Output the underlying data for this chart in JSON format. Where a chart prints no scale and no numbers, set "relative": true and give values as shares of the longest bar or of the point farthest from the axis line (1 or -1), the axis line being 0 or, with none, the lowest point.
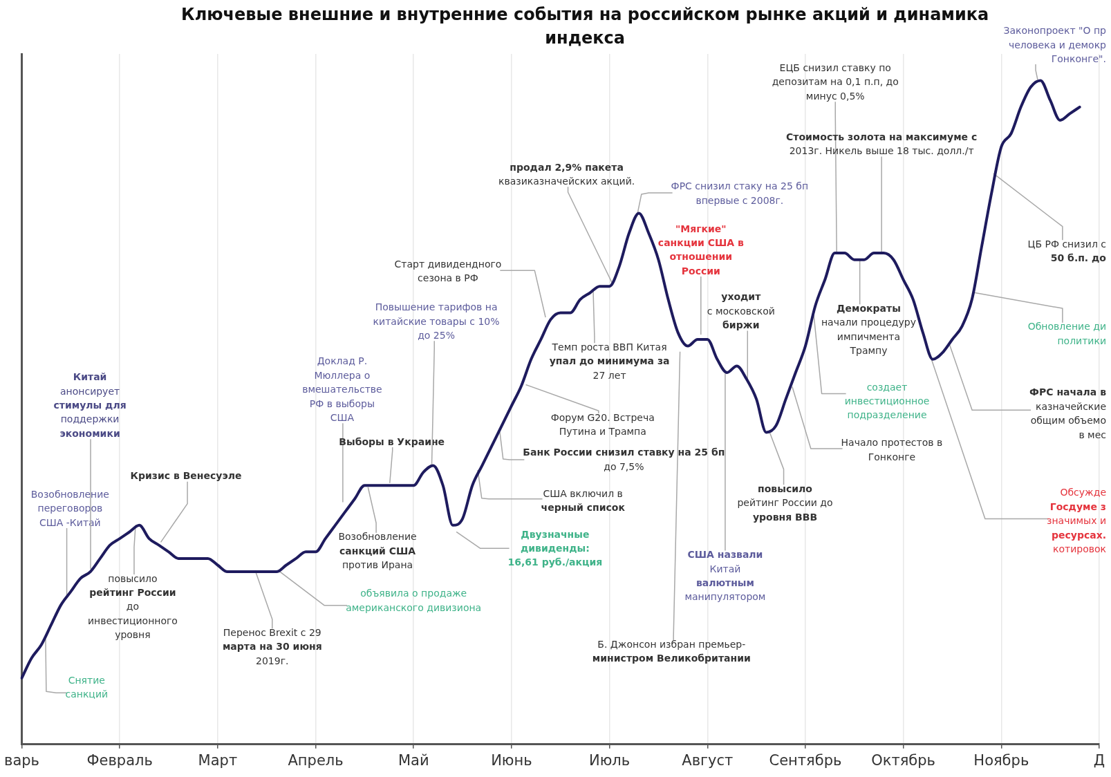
{
  "chart_data": {
    "type": "line",
    "title": "Ключевые внешние и внутренние события на российском рынке акций и динамика индекса",
    "relative": true,
    "color": "#1e1b5e",
    "marker": "none",
    "grid": "x",
    "categories": [
      "варь",
      null,
      null,
      null,
      null,
      null,
      null,
      null,
      null,
      null,
      "Февраль",
      null,
      null,
      null,
      null,
      null,
      null,
      null,
      null,
      null,
      "Март",
      null,
      null,
      null,
      null,
      null,
      null,
      null,
      null,
      null,
      "Апрель",
      null,
      null,
      null,
      null,
      null,
      null,
      null,
      null,
      null,
      "Май",
      null,
      null,
      null,
      null,
      null,
      null,
      null,
      null,
      null,
      "Июнь",
      null,
      null,
      null,
      null,
      null,
      null,
      null,
      null,
      null,
      "Июль",
      null,
      null,
      null,
      null,
      null,
      null,
      null,
      null,
      null,
      "Август",
      null,
      null,
      null,
      null,
      null,
      null,
      null,
      null,
      null,
      "Сентябрь",
      null,
      null,
      null,
      null,
      null,
      null,
      null,
      null,
      null,
      "Октябрь",
      null,
      null,
      null,
      null,
      null,
      null,
      null,
      null,
      null,
      "Ноябрь",
      null,
      null,
      null,
      null,
      null,
      null,
      null,
      null,
      null,
      "Д"
    ],
    "values": [
      0.1,
      0.13,
      0.15,
      0.18,
      0.21,
      0.23,
      0.25,
      0.26,
      0.28,
      0.3,
      0.31,
      0.32,
      0.33,
      0.31,
      0.3,
      0.29,
      0.28,
      0.28,
      0.28,
      0.28,
      0.27,
      0.26,
      0.26,
      0.26,
      0.26,
      0.26,
      0.26,
      0.27,
      0.28,
      0.29,
      0.29,
      0.31,
      0.33,
      0.35,
      0.37,
      0.39,
      0.39,
      0.39,
      0.39,
      0.39,
      0.39,
      0.41,
      0.42,
      0.39,
      0.33,
      0.34,
      0.39,
      0.42,
      0.45,
      0.48,
      0.51,
      0.54,
      0.58,
      0.61,
      0.64,
      0.65,
      0.65,
      0.67,
      0.68,
      0.69,
      0.69,
      0.72,
      0.77,
      0.8,
      0.77,
      0.73,
      0.67,
      0.62,
      0.6,
      0.61,
      0.61,
      0.58,
      0.56,
      0.57,
      0.55,
      0.52,
      0.47,
      0.48,
      0.52,
      0.56,
      0.6,
      0.66,
      0.7,
      0.74,
      0.74,
      0.73,
      0.73,
      0.74,
      0.74,
      0.73,
      0.7,
      0.67,
      0.62,
      0.58,
      0.59,
      0.61,
      0.63,
      0.67,
      0.75,
      0.83,
      0.9,
      0.92,
      0.96,
      0.99,
      1.0,
      0.97,
      0.94,
      0.95,
      0.96,
      null,
      null
    ],
    "annotations": [
      "Снятие санкций",
      "Возобновление переговоров США -Китай",
      "Китай анонсирует стимулы для поддержки экономики",
      "повысило рейтинг России до инвестиционного уровня",
      "Кризис в Венесуэле",
      "Перенос Brexit с 29 марта на 30 июня 2019г.",
      "объявила о продаже американского дивизиона",
      "Доклад Р. Мюллера о вмешательстве РФ в выборы США",
      "Возобновление санкций США против Ирана",
      "Выборы в Украине",
      "Повышение тарифов на китайские товары с 10% до 25%",
      "Двузначные дивиденды: 16,61 руб./акция",
      "США включил в черный список",
      "Банк России снизил ставку на 25 бп до 7,5%",
      "Форум G20. Встреча Путина и Трампа",
      "Старт дивидендного сезона в РФ",
      "Темп роста ВВП Китая упал до минимума за 27 лет",
      "продал 2,9% пакета квазиказначейских акций.",
      "ФРС снизил стаку на 25 бп впервые с 2008г.",
      "Б. Джонсон избран премьер-министром Великобритании",
      "\"Мягкие\" санкции США в отношении России",
      "США назвали Китай валютным манипулятором",
      "уходит с московской биржи",
      "повысило рейтинг России до уровня BBB",
      "Начало протестов в Гонконге",
      "создает инвестиционное подразделение",
      "ЕЦБ снизил ставку по депозитам на 0,1 п.п, до минус 0,5%",
      "Демократы начали процедуру импичмента Трампу",
      "Стоимость золота на максимуме с 2013г. Никель выше 18 тыс. долл./т",
      "Обсужде Госдуме з значимых и ресурсах. котировок",
      "ФРС начала в казначейские общим объемо в мес",
      "Обновление ди политики",
      "ЦБ РФ снизил с 50 б.п. до",
      "Законопроект \"О пр человека и демокр Гонконге\"."
    ]
  }
}
